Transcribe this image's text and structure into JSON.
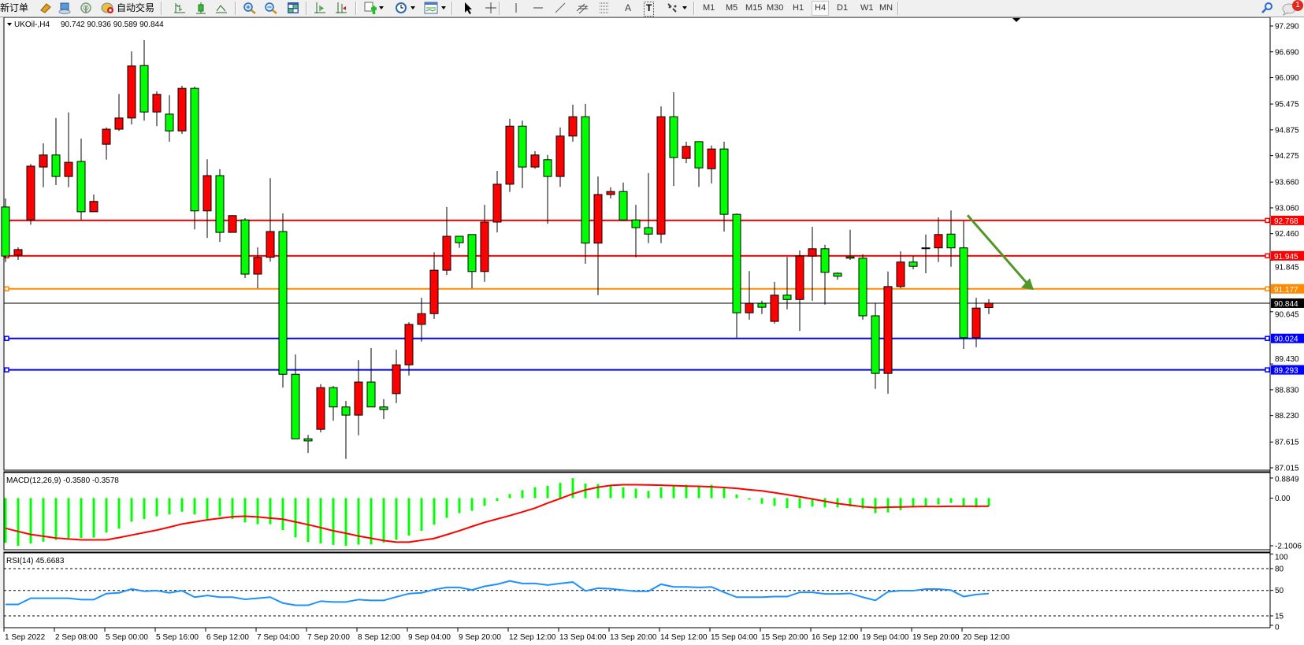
{
  "toolbar": {
    "new_order": "新订单",
    "auto_trading": "自动交易",
    "timeframes": [
      "M1",
      "M5",
      "M15",
      "M30",
      "H1",
      "H4",
      "D1",
      "W1",
      "MN"
    ],
    "active_timeframe": "H4",
    "text_tool": "A",
    "label_tool": "T",
    "notification_count": "1",
    "icons": [
      "metaeditor-icon",
      "navigator-icon",
      "signal-icon",
      "auto-trading-icon",
      "bar-chart-icon",
      "candlestick-icon",
      "line-chart-icon",
      "zoom-in-icon",
      "zoom-out-icon",
      "tile-windows-icon",
      "chart-shift-icon",
      "autoscroll-icon",
      "new-chart-icon",
      "periods-icon",
      "templates-icon",
      "cursor-icon",
      "crosshair-icon",
      "vertical-line-icon",
      "horizontal-line-icon",
      "trendline-icon",
      "equidistant-channel-icon",
      "fibonacci-icon",
      "text-icon",
      "label-icon",
      "arrows-icon",
      "search-icon",
      "chat-icon"
    ]
  },
  "chart_data": {
    "type": "candlestick",
    "symbol_label": "UKOil-,H4",
    "ohlc_label": "90.742 90.936 90.589 90.844",
    "colors": {
      "bull": "#ff0000",
      "bear": "#00ff00",
      "outline": "#000000",
      "background": "#ffffff"
    },
    "ylim": [
      87.015,
      97.29
    ],
    "y_ticks": [
      "97.290",
      "96.690",
      "96.090",
      "95.475",
      "94.875",
      "94.275",
      "93.660",
      "93.060",
      "92.460",
      "91.845",
      "90.645",
      "89.430",
      "88.830",
      "88.230",
      "87.615",
      "87.015"
    ],
    "x_ticks": [
      "1 Sep 2022",
      "2 Sep 08:00",
      "5 Sep 00:00",
      "5 Sep 16:00",
      "6 Sep 12:00",
      "7 Sep 04:00",
      "7 Sep 20:00",
      "8 Sep 12:00",
      "9 Sep 04:00",
      "9 Sep 20:00",
      "12 Sep 12:00",
      "13 Sep 04:00",
      "13 Sep 20:00",
      "14 Sep 12:00",
      "15 Sep 04:00",
      "15 Sep 20:00",
      "16 Sep 12:00",
      "19 Sep 04:00",
      "19 Sep 20:00",
      "20 Sep 12:00"
    ],
    "x_tick_every_bars": 4,
    "candles_ohlc": [
      [
        93.08,
        93.28,
        91.8,
        91.94
      ],
      [
        91.96,
        92.14,
        91.85,
        92.09
      ],
      [
        92.78,
        94.08,
        92.67,
        94.03
      ],
      [
        94.01,
        94.56,
        93.54,
        94.29
      ],
      [
        94.29,
        95.15,
        93.59,
        93.79
      ],
      [
        93.79,
        95.28,
        93.54,
        94.12
      ],
      [
        94.14,
        94.67,
        92.78,
        92.97
      ],
      [
        92.97,
        93.37,
        92.97,
        93.21
      ],
      [
        94.54,
        94.93,
        94.18,
        94.89
      ],
      [
        94.89,
        95.71,
        94.85,
        95.15
      ],
      [
        95.15,
        96.7,
        95.0,
        96.36
      ],
      [
        96.37,
        96.96,
        95.09,
        95.29
      ],
      [
        95.29,
        95.77,
        94.96,
        95.7
      ],
      [
        95.24,
        95.68,
        94.6,
        94.85
      ],
      [
        94.85,
        95.9,
        94.78,
        95.84
      ],
      [
        95.84,
        95.88,
        92.56,
        92.99
      ],
      [
        92.99,
        94.19,
        92.36,
        93.81
      ],
      [
        93.81,
        93.96,
        92.27,
        92.49
      ],
      [
        92.49,
        92.89,
        92.49,
        92.88
      ],
      [
        92.78,
        92.82,
        91.43,
        91.52
      ],
      [
        91.52,
        92.14,
        91.19,
        91.91
      ],
      [
        91.91,
        93.75,
        91.81,
        92.51
      ],
      [
        92.51,
        92.93,
        88.88,
        89.19
      ],
      [
        89.19,
        89.65,
        87.69,
        87.69
      ],
      [
        87.69,
        87.78,
        87.36,
        87.64
      ],
      [
        87.91,
        88.96,
        87.84,
        88.88
      ],
      [
        88.88,
        88.92,
        88.11,
        88.43
      ],
      [
        88.43,
        88.57,
        87.22,
        88.24
      ],
      [
        88.24,
        89.52,
        87.77,
        89.01
      ],
      [
        89.01,
        89.8,
        88.43,
        88.43
      ],
      [
        88.43,
        88.61,
        88.15,
        88.37
      ],
      [
        88.74,
        89.76,
        88.52,
        89.41
      ],
      [
        89.41,
        90.4,
        89.16,
        90.35
      ],
      [
        90.35,
        90.97,
        89.95,
        90.6
      ],
      [
        90.6,
        92.03,
        90.48,
        91.61
      ],
      [
        91.61,
        93.08,
        91.5,
        92.4
      ],
      [
        92.4,
        92.4,
        92.13,
        92.25
      ],
      [
        92.44,
        92.44,
        91.19,
        91.58
      ],
      [
        91.58,
        93.13,
        91.34,
        92.73
      ],
      [
        92.73,
        93.92,
        92.49,
        93.61
      ],
      [
        93.61,
        95.13,
        93.43,
        94.96
      ],
      [
        94.96,
        95.09,
        93.52,
        94.01
      ],
      [
        94.01,
        94.38,
        93.97,
        94.29
      ],
      [
        94.18,
        94.29,
        92.69,
        93.79
      ],
      [
        93.79,
        94.93,
        93.55,
        94.73
      ],
      [
        94.73,
        95.46,
        94.6,
        95.18
      ],
      [
        95.18,
        95.48,
        91.76,
        92.24
      ],
      [
        92.24,
        93.79,
        91.03,
        93.37
      ],
      [
        93.37,
        93.54,
        93.28,
        93.44
      ],
      [
        93.44,
        93.65,
        92.78,
        92.78
      ],
      [
        92.78,
        93.13,
        91.91,
        92.6
      ],
      [
        92.6,
        93.87,
        92.24,
        92.45
      ],
      [
        92.45,
        95.42,
        92.24,
        95.18
      ],
      [
        95.18,
        95.75,
        93.57,
        94.23
      ],
      [
        94.21,
        94.6,
        94.1,
        94.49
      ],
      [
        94.6,
        94.6,
        93.55,
        93.99
      ],
      [
        93.97,
        94.51,
        93.63,
        94.43
      ],
      [
        94.43,
        94.6,
        92.51,
        92.91
      ],
      [
        92.91,
        92.93,
        90.04,
        90.62
      ],
      [
        90.62,
        91.59,
        90.46,
        90.84
      ],
      [
        90.84,
        90.9,
        90.59,
        90.75
      ],
      [
        90.42,
        91.34,
        90.37,
        91.03
      ],
      [
        91.03,
        91.92,
        90.7,
        90.93
      ],
      [
        90.93,
        92.07,
        90.2,
        91.94
      ],
      [
        91.94,
        92.62,
        90.9,
        92.11
      ],
      [
        92.11,
        92.2,
        90.81,
        91.56
      ],
      [
        91.54,
        91.56,
        91.39,
        91.47
      ],
      [
        91.92,
        92.55,
        91.85,
        91.89
      ],
      [
        91.89,
        91.98,
        90.46,
        90.55
      ],
      [
        90.55,
        90.84,
        88.85,
        89.21
      ],
      [
        89.21,
        91.58,
        88.74,
        91.23
      ],
      [
        91.23,
        92.05,
        91.19,
        91.8
      ],
      [
        91.8,
        91.94,
        91.63,
        91.7
      ],
      [
        92.13,
        92.44,
        91.54,
        92.13
      ],
      [
        92.13,
        92.84,
        91.8,
        92.44
      ],
      [
        92.45,
        93.0,
        91.69,
        92.13
      ],
      [
        92.13,
        92.75,
        89.78,
        90.04
      ],
      [
        90.04,
        90.97,
        89.82,
        90.73
      ],
      [
        90.742,
        90.936,
        90.589,
        90.844
      ]
    ],
    "current_price": {
      "value": "90.844",
      "color": "#000000"
    },
    "levels": [
      {
        "value": "92.768",
        "color": "#ff0000"
      },
      {
        "value": "91.945",
        "color": "#ff0000"
      },
      {
        "value": "91.177",
        "color": "#ff8c00"
      },
      {
        "value": "90.024",
        "color": "#0000ff"
      },
      {
        "value": "89.293",
        "color": "#0000ff"
      }
    ],
    "annotations": [
      {
        "type": "arrow",
        "color": "#52962c",
        "from_price": 92.89,
        "to_price": 91.15
      }
    ],
    "macd": {
      "label": "MACD(12,26,9) -0.3580 -0.3578",
      "ylim": [
        -2.1006,
        0.8849
      ],
      "y_ticks": [
        "0.8849",
        "0.00",
        "-2.1006"
      ],
      "histogram_color": "#00ff00",
      "signal_color": "#ff0000",
      "histogram": [
        -1.97,
        -2.1,
        -2.0,
        -1.92,
        -1.84,
        -1.76,
        -1.76,
        -1.74,
        -1.52,
        -1.34,
        -1.04,
        -0.92,
        -0.8,
        -0.72,
        -0.6,
        -0.72,
        -0.92,
        -0.8,
        -0.92,
        -1.07,
        -1.15,
        -1.15,
        -1.41,
        -1.73,
        -1.94,
        -2.0,
        -2.06,
        -2.1,
        -2.05,
        -2.04,
        -1.96,
        -1.84,
        -1.65,
        -1.44,
        -1.17,
        -0.87,
        -0.66,
        -0.56,
        -0.34,
        -0.13,
        0.18,
        0.35,
        0.48,
        0.54,
        0.67,
        0.88,
        0.64,
        0.62,
        0.56,
        0.48,
        0.42,
        0.32,
        0.48,
        0.53,
        0.59,
        0.53,
        0.59,
        0.5,
        0.16,
        -0.07,
        -0.25,
        -0.34,
        -0.44,
        -0.44,
        -0.37,
        -0.41,
        -0.41,
        -0.37,
        -0.46,
        -0.66,
        -0.63,
        -0.53,
        -0.41,
        -0.37,
        -0.28,
        -0.21,
        -0.35,
        -0.41,
        -0.358
      ],
      "signal": [
        -1.33,
        -1.47,
        -1.6,
        -1.68,
        -1.76,
        -1.8,
        -1.84,
        -1.84,
        -1.84,
        -1.74,
        -1.63,
        -1.52,
        -1.41,
        -1.28,
        -1.14,
        -1.05,
        -0.96,
        -0.89,
        -0.82,
        -0.8,
        -0.83,
        -0.88,
        -0.93,
        -1.05,
        -1.17,
        -1.3,
        -1.44,
        -1.55,
        -1.67,
        -1.77,
        -1.87,
        -1.94,
        -1.94,
        -1.86,
        -1.78,
        -1.61,
        -1.44,
        -1.25,
        -1.07,
        -0.92,
        -0.77,
        -0.61,
        -0.44,
        -0.22,
        -0.02,
        0.19,
        0.36,
        0.48,
        0.56,
        0.59,
        0.59,
        0.58,
        0.57,
        0.55,
        0.53,
        0.52,
        0.5,
        0.47,
        0.43,
        0.37,
        0.32,
        0.24,
        0.15,
        0.06,
        -0.04,
        -0.14,
        -0.24,
        -0.31,
        -0.38,
        -0.42,
        -0.4,
        -0.39,
        -0.38,
        -0.37,
        -0.37,
        -0.36,
        -0.36,
        -0.36,
        -0.3578
      ]
    },
    "rsi": {
      "label": "RSI(14) 45.6683",
      "ylim": [
        0,
        100
      ],
      "y_ticks": [
        "100",
        "80",
        "50",
        "15",
        "0"
      ],
      "levels": [
        80,
        50,
        15
      ],
      "color": "#1e90ff",
      "values": [
        30.7,
        30.7,
        39.3,
        39.3,
        39.3,
        39.3,
        37.4,
        37.4,
        45.6,
        46.7,
        51.9,
        48.9,
        49.6,
        46.7,
        49.6,
        40.7,
        43.0,
        40.7,
        40.7,
        37.8,
        39.3,
        40.7,
        32.6,
        29.6,
        29.6,
        35.2,
        34.1,
        34.1,
        37.4,
        36.3,
        36.3,
        41.1,
        45.6,
        46.7,
        51.1,
        54.1,
        54.1,
        50.7,
        55.6,
        58.5,
        63.0,
        59.6,
        59.6,
        57.4,
        59.6,
        61.5,
        49.3,
        53.0,
        52.2,
        50.4,
        48.9,
        48.9,
        58.5,
        54.8,
        54.8,
        54.1,
        54.8,
        47.4,
        40.7,
        40.7,
        40.7,
        41.5,
        41.5,
        47.4,
        47.4,
        45.2,
        45.2,
        45.9,
        40.7,
        36.3,
        48.1,
        49.6,
        49.6,
        51.9,
        51.9,
        50.4,
        41.5,
        44.4,
        45.67
      ]
    }
  }
}
